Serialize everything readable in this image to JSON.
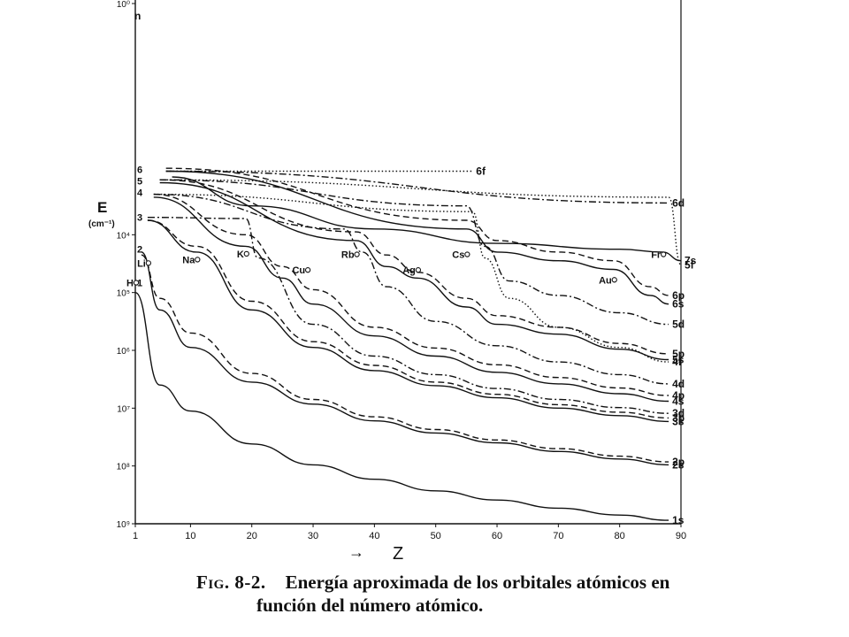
{
  "chart_data": {
    "type": "line",
    "title": "",
    "xlabel": "Z",
    "xlabel_prefix": "→",
    "ylabel": "E",
    "ylabel_unit": "(cm⁻¹)",
    "xlim": [
      1,
      90
    ],
    "ylim_log10": [
      0,
      9
    ],
    "y_scale": "log",
    "y_axis_direction": "inverted",
    "x_ticks": [
      {
        "value": 1,
        "label": "1"
      },
      {
        "value": 10,
        "label": "10"
      },
      {
        "value": 20,
        "label": "20"
      },
      {
        "value": 30,
        "label": "30"
      },
      {
        "value": 40,
        "label": "40"
      },
      {
        "value": 50,
        "label": "50"
      },
      {
        "value": 60,
        "label": "60"
      },
      {
        "value": 70,
        "label": "70"
      },
      {
        "value": 80,
        "label": "80"
      },
      {
        "value": 90,
        "label": "90"
      }
    ],
    "y_ticks": [
      {
        "value": 0,
        "label": "10⁰"
      },
      {
        "value": 4,
        "label": "10⁴"
      },
      {
        "value": 5,
        "label": "10⁵"
      },
      {
        "value": 6,
        "label": "10⁶"
      },
      {
        "value": 7,
        "label": "10⁷"
      },
      {
        "value": 8,
        "label": "10⁸"
      },
      {
        "value": 9,
        "label": "10⁹"
      }
    ],
    "n_axis": {
      "label": "n",
      "levels": [
        {
          "n": "1",
          "log10E": 4.83
        },
        {
          "n": "2",
          "log10E": 4.25
        },
        {
          "n": "3",
          "log10E": 3.7
        },
        {
          "n": "4",
          "log10E": 3.27
        },
        {
          "n": "5",
          "log10E": 3.07
        },
        {
          "n": "6",
          "log10E": 2.87
        }
      ]
    },
    "elements": [
      {
        "label": "H",
        "x": 1,
        "log10E": 4.83
      },
      {
        "label": "Li",
        "x": 3,
        "log10E": 4.49
      },
      {
        "label": "Na",
        "x": 11,
        "log10E": 4.43
      },
      {
        "label": "K",
        "x": 19,
        "log10E": 4.33
      },
      {
        "label": "Cu",
        "x": 29,
        "log10E": 4.61
      },
      {
        "label": "Rb",
        "x": 37,
        "log10E": 4.34
      },
      {
        "label": "Ag",
        "x": 47,
        "log10E": 4.61
      },
      {
        "label": "Cs",
        "x": 55,
        "log10E": 4.34
      },
      {
        "label": "Au",
        "x": 79,
        "log10E": 4.78
      },
      {
        "label": "Fr",
        "x": 87,
        "log10E": 4.34
      }
    ],
    "series": [
      {
        "name": "1s",
        "style": "solid",
        "x": [
          1,
          5,
          10,
          20,
          30,
          40,
          50,
          60,
          70,
          80,
          88
        ],
        "y": [
          5.0,
          6.6,
          7.05,
          7.62,
          7.98,
          8.23,
          8.43,
          8.59,
          8.73,
          8.85,
          8.94
        ]
      },
      {
        "name": "2s",
        "style": "solid",
        "x": [
          2,
          5,
          10,
          20,
          30,
          40,
          50,
          60,
          70,
          80,
          88
        ],
        "y": [
          4.3,
          5.3,
          5.95,
          6.55,
          6.93,
          7.22,
          7.43,
          7.6,
          7.75,
          7.88,
          7.98
        ]
      },
      {
        "name": "2p",
        "style": "dash",
        "x": [
          2,
          5,
          10,
          20,
          30,
          40,
          50,
          60,
          70,
          80,
          88
        ],
        "y": [
          4.35,
          5.1,
          5.7,
          6.4,
          6.85,
          7.15,
          7.37,
          7.55,
          7.7,
          7.83,
          7.93
        ]
      },
      {
        "name": "3s",
        "style": "solid",
        "x": [
          3,
          11,
          20,
          30,
          40,
          50,
          60,
          70,
          80,
          88
        ],
        "y": [
          3.75,
          4.3,
          5.3,
          5.95,
          6.35,
          6.61,
          6.82,
          7.0,
          7.13,
          7.23
        ]
      },
      {
        "name": "3p",
        "style": "dash",
        "x": [
          3,
          11,
          20,
          30,
          40,
          50,
          60,
          70,
          80,
          88
        ],
        "y": [
          3.75,
          4.2,
          5.15,
          5.85,
          6.26,
          6.55,
          6.76,
          6.94,
          7.07,
          7.17
        ]
      },
      {
        "name": "3d",
        "style": "dashdot",
        "x": [
          3,
          19,
          21,
          30,
          40,
          50,
          60,
          70,
          80,
          88
        ],
        "y": [
          3.7,
          3.72,
          4.4,
          5.55,
          6.1,
          6.42,
          6.66,
          6.85,
          6.99,
          7.09
        ]
      },
      {
        "name": "4s",
        "style": "solid",
        "x": [
          4,
          19,
          25,
          30,
          40,
          50,
          60,
          70,
          80,
          88
        ],
        "y": [
          3.35,
          4.2,
          4.75,
          5.2,
          5.75,
          6.1,
          6.38,
          6.58,
          6.75,
          6.88
        ]
      },
      {
        "name": "4p",
        "style": "dash",
        "x": [
          4,
          19,
          25,
          30,
          40,
          50,
          60,
          70,
          80,
          88
        ],
        "y": [
          3.3,
          4.0,
          4.55,
          4.95,
          5.6,
          5.96,
          6.25,
          6.47,
          6.65,
          6.78
        ]
      },
      {
        "name": "4d",
        "style": "dashdot",
        "x": [
          4,
          35,
          38,
          42,
          50,
          60,
          70,
          80,
          88
        ],
        "y": [
          3.3,
          3.9,
          4.3,
          4.9,
          5.5,
          5.92,
          6.2,
          6.42,
          6.58
        ]
      },
      {
        "name": "4f",
        "style": "dotted",
        "x": [
          4,
          56,
          58,
          62,
          70,
          80,
          88
        ],
        "y": [
          3.3,
          3.6,
          4.4,
          5.1,
          5.6,
          5.95,
          6.2
        ]
      },
      {
        "name": "5s",
        "style": "solid",
        "x": [
          5,
          37,
          42,
          47,
          55,
          60,
          70,
          80,
          88
        ],
        "y": [
          3.1,
          4.1,
          4.55,
          4.75,
          5.25,
          5.55,
          5.72,
          5.98,
          6.16
        ]
      },
      {
        "name": "5p",
        "style": "dash",
        "x": [
          5,
          37,
          42,
          47,
          55,
          60,
          70,
          80,
          88
        ],
        "y": [
          3.05,
          3.95,
          4.35,
          4.65,
          5.1,
          5.4,
          5.6,
          5.88,
          6.06
        ]
      },
      {
        "name": "5d",
        "style": "dashdot",
        "x": [
          5,
          55,
          58,
          62,
          70,
          80,
          88
        ],
        "y": [
          3.05,
          3.5,
          4.2,
          4.8,
          5.05,
          5.35,
          5.55
        ]
      },
      {
        "name": "5f",
        "style": "dotted",
        "x": [
          5,
          88,
          90
        ],
        "y": [
          3.05,
          3.35,
          4.52
        ]
      },
      {
        "name": "6s",
        "style": "solid",
        "x": [
          6,
          55,
          60,
          70,
          79,
          85,
          88
        ],
        "y": [
          2.9,
          3.9,
          4.3,
          4.45,
          4.6,
          5.05,
          5.2
        ]
      },
      {
        "name": "6p",
        "style": "dash",
        "x": [
          6,
          55,
          60,
          70,
          79,
          85,
          88
        ],
        "y": [
          2.85,
          3.75,
          4.1,
          4.3,
          4.45,
          4.9,
          5.05
        ]
      },
      {
        "name": "6d",
        "style": "dashdot",
        "x": [
          6,
          88
        ],
        "y": [
          2.9,
          3.45
        ]
      },
      {
        "name": "6f",
        "style": "dotted",
        "x": [
          6,
          56
        ],
        "y": [
          2.9,
          2.9
        ]
      },
      {
        "name": "7s",
        "style": "solid",
        "x": [
          7,
          20,
          40,
          60,
          80,
          87,
          90
        ],
        "y": [
          3.0,
          3.5,
          3.9,
          4.15,
          4.25,
          4.3,
          4.45
        ]
      }
    ]
  },
  "caption": {
    "number": "Fig. 8-2.",
    "line1": "Energía aproximada de los orbitales atómicos en",
    "line2": "función del número atómico."
  }
}
